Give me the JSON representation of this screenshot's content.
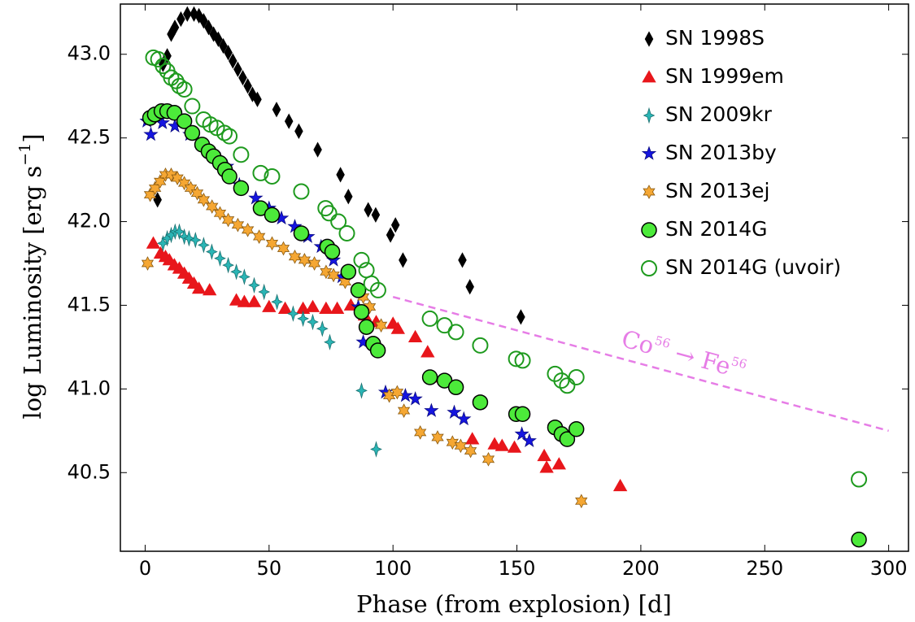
{
  "chart_data": {
    "type": "scatter",
    "xlabel": "Phase (from explosion) [d]",
    "ylabel_parts": [
      "log Luminosity [erg s",
      "−1",
      "]"
    ],
    "xlim": [
      -10,
      308
    ],
    "ylim": [
      40.03,
      43.3
    ],
    "xticks": [
      0,
      50,
      100,
      150,
      200,
      250,
      300
    ],
    "yticks": [
      40.5,
      {
        "value": 41,
        "label": "41.0"
      },
      41.5,
      {
        "value": 42,
        "label": "42.0"
      },
      42.5,
      {
        "value": 43,
        "label": "43.0"
      }
    ],
    "legend": "upper right",
    "reference_line": {
      "x": [
        100,
        300
      ],
      "values": [
        41.55,
        40.75
      ],
      "color": "#e67de6",
      "label_parts": [
        "Co",
        "56",
        " → Fe",
        "56"
      ]
    },
    "series": [
      {
        "name": "SN 1998S",
        "marker": "diamond",
        "color": "#000000",
        "edge": "#000000",
        "x": [
          5,
          7.2,
          8.9,
          10.5,
          12,
          14.4,
          17,
          19.7,
          21.7,
          23.6,
          25.6,
          27.6,
          29.5,
          31.5,
          33.5,
          35.4,
          37.4,
          39.4,
          41.4,
          43.3,
          45.3,
          53,
          58,
          62,
          69.6,
          78.8,
          82,
          90,
          93,
          99,
          101,
          104,
          128,
          131,
          151.6
        ],
        "values": [
          42.13,
          42.94,
          42.99,
          43.12,
          43.16,
          43.21,
          43.24,
          43.24,
          43.23,
          43.2,
          43.16,
          43.12,
          43.09,
          43.05,
          43.01,
          42.96,
          42.91,
          42.86,
          42.81,
          42.76,
          42.73,
          42.67,
          42.6,
          42.54,
          42.43,
          42.28,
          42.15,
          42.07,
          42.04,
          41.92,
          41.98,
          41.77,
          41.77,
          41.61,
          41.43
        ]
      },
      {
        "name": "SN 1999em",
        "marker": "triangle",
        "color": "#e8161b",
        "edge": "#e8161b",
        "x": [
          3.3,
          6.2,
          8.2,
          9.8,
          11.8,
          13.8,
          15.8,
          17.7,
          19.7,
          21.7,
          26,
          36.8,
          40,
          44,
          50,
          56.5,
          63.7,
          67.6,
          73,
          77.5,
          83,
          88.6,
          93.2,
          100,
          102,
          109,
          114,
          115.5,
          132,
          141,
          144,
          149,
          161,
          162,
          167,
          191.7
        ],
        "values": [
          41.87,
          41.81,
          41.79,
          41.77,
          41.74,
          41.72,
          41.69,
          41.66,
          41.63,
          41.6,
          41.59,
          41.53,
          41.52,
          41.52,
          41.49,
          41.48,
          41.48,
          41.49,
          41.48,
          41.48,
          41.5,
          41.44,
          41.4,
          41.39,
          41.36,
          41.31,
          41.22,
          41.07,
          40.7,
          40.67,
          40.66,
          40.65,
          40.6,
          40.53,
          40.55,
          40.42
        ]
      },
      {
        "name": "SN 2009kr",
        "marker": "star4",
        "color": "#2ab5b5",
        "edge": "#1a7070",
        "x": [
          7.2,
          8.9,
          10.5,
          12.1,
          13.8,
          15.8,
          17.7,
          20.3,
          23.6,
          26.9,
          30.2,
          33.5,
          36.8,
          40,
          44,
          48,
          53.2,
          59.7,
          63.7,
          67.6,
          71.5,
          74.5,
          87.3,
          93.2
        ],
        "values": [
          41.87,
          41.9,
          41.92,
          41.94,
          41.94,
          41.91,
          41.9,
          41.89,
          41.86,
          41.82,
          41.78,
          41.74,
          41.7,
          41.67,
          41.62,
          41.58,
          41.52,
          41.45,
          41.42,
          41.4,
          41.36,
          41.28,
          40.99,
          40.64
        ]
      },
      {
        "name": "SN 2013by",
        "marker": "star5",
        "color": "#1515e0",
        "edge": "#0a0a80",
        "x": [
          0.7,
          2.3,
          7,
          12,
          18,
          23,
          27.6,
          33,
          38,
          44.6,
          50,
          55,
          60.4,
          65.6,
          71,
          76,
          79.4,
          86,
          88,
          97,
          105,
          109,
          115.5,
          124.7,
          128.6,
          152,
          155
        ],
        "values": [
          42.6,
          42.52,
          42.59,
          42.57,
          42.52,
          42.46,
          42.4,
          42.33,
          42.22,
          42.14,
          42.08,
          42.02,
          41.97,
          41.91,
          41.85,
          41.77,
          41.67,
          41.49,
          41.28,
          40.98,
          40.96,
          40.94,
          40.87,
          40.86,
          40.82,
          40.73,
          40.69
        ]
      },
      {
        "name": "SN 2013ej",
        "marker": "star6",
        "color": "#f5a733",
        "edge": "#8a5a10",
        "x": [
          1,
          2,
          4,
          6,
          8.2,
          10.5,
          13,
          15.8,
          18.4,
          21,
          23.6,
          27,
          30.2,
          33.5,
          37.4,
          41.4,
          46,
          51.2,
          55.8,
          60.4,
          64.3,
          68.3,
          73,
          76,
          80.7,
          88,
          90.6,
          95.2,
          98.5,
          101.7,
          104.4,
          111,
          118,
          124,
          127.3,
          131.3,
          138.5,
          176
        ],
        "values": [
          41.75,
          42.16,
          42.2,
          42.24,
          42.28,
          42.28,
          42.26,
          42.23,
          42.2,
          42.17,
          42.13,
          42.09,
          42.05,
          42.01,
          41.98,
          41.95,
          41.91,
          41.87,
          41.84,
          41.79,
          41.77,
          41.75,
          41.7,
          41.68,
          41.64,
          41.55,
          41.49,
          41.38,
          40.96,
          40.98,
          40.87,
          40.74,
          40.71,
          40.68,
          40.66,
          40.63,
          40.58,
          40.33
        ]
      },
      {
        "name": "SN 2014G",
        "marker": "circle",
        "color": "#4cea3a",
        "edge": "#000000",
        "x": [
          2,
          3.9,
          6.6,
          8.9,
          11.8,
          15.8,
          19,
          23,
          25.6,
          27.6,
          30.2,
          32.2,
          34,
          38.7,
          46.6,
          51.2,
          63,
          73.5,
          75.5,
          82,
          86,
          87.3,
          89.3,
          92,
          93.9,
          114.9,
          120.8,
          125.4,
          135.2,
          149.7,
          152.3,
          165.4,
          168,
          170.3,
          174,
          288
        ],
        "values": [
          42.62,
          42.64,
          42.66,
          42.66,
          42.65,
          42.6,
          42.53,
          42.46,
          42.42,
          42.39,
          42.35,
          42.31,
          42.27,
          42.2,
          42.08,
          42.04,
          41.93,
          41.85,
          41.82,
          41.7,
          41.59,
          41.46,
          41.37,
          41.27,
          41.23,
          41.07,
          41.05,
          41.01,
          40.92,
          40.85,
          40.85,
          40.77,
          40.73,
          40.7,
          40.76,
          40.1
        ]
      },
      {
        "name": "SN 2014G (uvoir)",
        "marker": "open-circle",
        "color": "none",
        "edge": "#1e9a1e",
        "x": [
          3.3,
          5.3,
          7.2,
          8.9,
          10.5,
          12.5,
          13.8,
          15.8,
          19,
          23.6,
          26.3,
          28.9,
          32,
          34,
          38.7,
          46.6,
          51.2,
          63,
          72.8,
          74.2,
          78,
          81.4,
          87.3,
          89.3,
          91.3,
          94,
          114.9,
          120.8,
          125.4,
          135.2,
          149.7,
          152.3,
          165.4,
          168,
          170.3,
          174,
          288
        ],
        "values": [
          42.98,
          42.97,
          42.93,
          42.9,
          42.86,
          42.84,
          42.81,
          42.79,
          42.69,
          42.61,
          42.58,
          42.56,
          42.53,
          42.51,
          42.4,
          42.29,
          42.27,
          42.18,
          42.08,
          42.05,
          42.0,
          41.93,
          41.77,
          41.71,
          41.63,
          41.59,
          41.42,
          41.38,
          41.34,
          41.26,
          41.18,
          41.17,
          41.09,
          41.05,
          41.02,
          41.07,
          40.46
        ]
      }
    ]
  }
}
